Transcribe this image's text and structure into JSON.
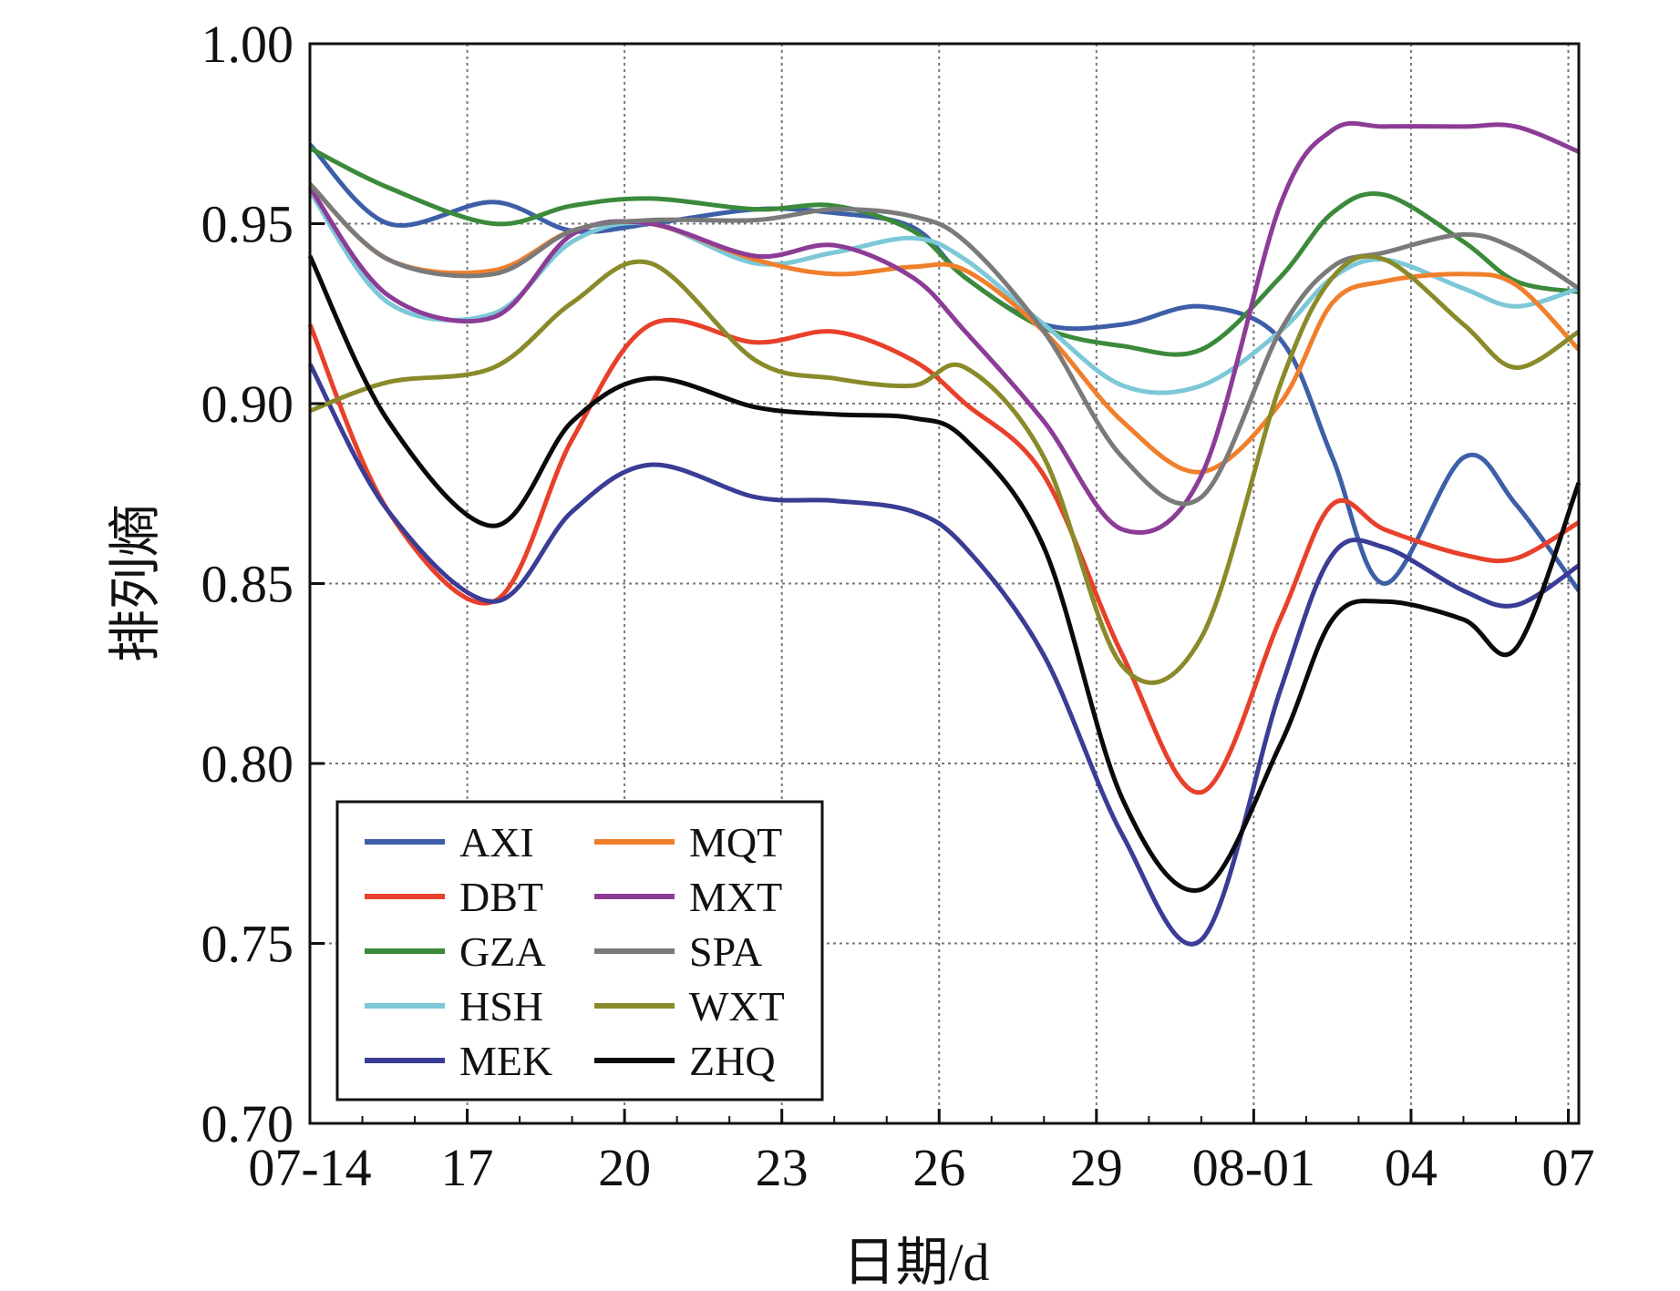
{
  "chart_data": {
    "type": "line",
    "title": "",
    "xlabel": "日期/d",
    "ylabel": "排列熵",
    "ylim": [
      0.7,
      1.0
    ],
    "xlim": [
      0,
      24.2
    ],
    "grid": true,
    "legend_position": "bottom-left",
    "x_ticks": [
      {
        "value": 0,
        "label": "07-14"
      },
      {
        "value": 3,
        "label": "17"
      },
      {
        "value": 6,
        "label": "20"
      },
      {
        "value": 9,
        "label": "23"
      },
      {
        "value": 12,
        "label": "26"
      },
      {
        "value": 15,
        "label": "29"
      },
      {
        "value": 18,
        "label": "08-01"
      },
      {
        "value": 21,
        "label": "04"
      },
      {
        "value": 24,
        "label": "07"
      }
    ],
    "y_ticks": [
      "0.70",
      "0.75",
      "0.80",
      "0.85",
      "0.90",
      "0.95",
      "1.00"
    ],
    "x": [
      0,
      1.5,
      3.5,
      5,
      6.5,
      8.5,
      10,
      11.5,
      12.5,
      14,
      15.5,
      17,
      18.5,
      19.5,
      20.5,
      22,
      23,
      24.2
    ],
    "series": [
      {
        "name": "AXI",
        "color": "#3d5fa8",
        "values": [
          0.972,
          0.95,
          0.956,
          0.948,
          0.95,
          0.954,
          0.953,
          0.949,
          0.935,
          0.922,
          0.922,
          0.927,
          0.918,
          0.885,
          0.85,
          0.885,
          0.872,
          0.848
        ]
      },
      {
        "name": "DBT",
        "color": "#e8402a",
        "values": [
          0.922,
          0.87,
          0.845,
          0.89,
          0.922,
          0.917,
          0.92,
          0.912,
          0.9,
          0.88,
          0.83,
          0.792,
          0.84,
          0.872,
          0.865,
          0.858,
          0.857,
          0.867
        ]
      },
      {
        "name": "GZA",
        "color": "#3b8a3b",
        "values": [
          0.971,
          0.96,
          0.95,
          0.955,
          0.957,
          0.954,
          0.955,
          0.948,
          0.935,
          0.921,
          0.916,
          0.915,
          0.935,
          0.953,
          0.958,
          0.945,
          0.934,
          0.931
        ]
      },
      {
        "name": "HSH",
        "color": "#7cc8d8",
        "values": [
          0.959,
          0.928,
          0.925,
          0.945,
          0.95,
          0.939,
          0.942,
          0.946,
          0.94,
          0.922,
          0.905,
          0.905,
          0.92,
          0.935,
          0.94,
          0.932,
          0.927,
          0.932
        ]
      },
      {
        "name": "MEK",
        "color": "#3a3d95",
        "values": [
          0.911,
          0.87,
          0.845,
          0.87,
          0.883,
          0.874,
          0.873,
          0.87,
          0.86,
          0.83,
          0.78,
          0.751,
          0.82,
          0.858,
          0.86,
          0.848,
          0.844,
          0.855
        ]
      },
      {
        "name": "MQT",
        "color": "#f07f2c",
        "values": [
          0.961,
          0.94,
          0.937,
          0.948,
          0.95,
          0.94,
          0.936,
          0.938,
          0.937,
          0.92,
          0.895,
          0.881,
          0.9,
          0.928,
          0.934,
          0.936,
          0.933,
          0.915
        ]
      },
      {
        "name": "MXT",
        "color": "#8c3c96",
        "values": [
          0.96,
          0.93,
          0.924,
          0.947,
          0.95,
          0.941,
          0.944,
          0.935,
          0.92,
          0.895,
          0.865,
          0.88,
          0.955,
          0.976,
          0.977,
          0.977,
          0.977,
          0.97
        ]
      },
      {
        "name": "SPA",
        "color": "#7a7a7a",
        "values": [
          0.961,
          0.94,
          0.936,
          0.948,
          0.951,
          0.951,
          0.954,
          0.952,
          0.945,
          0.92,
          0.885,
          0.874,
          0.92,
          0.938,
          0.942,
          0.947,
          0.943,
          0.932
        ]
      },
      {
        "name": "WXT",
        "color": "#8a8a2a",
        "values": [
          0.898,
          0.906,
          0.91,
          0.928,
          0.939,
          0.912,
          0.907,
          0.905,
          0.91,
          0.885,
          0.827,
          0.835,
          0.905,
          0.935,
          0.94,
          0.922,
          0.91,
          0.92
        ]
      },
      {
        "name": "ZHQ",
        "color": "#0a0a0a",
        "values": [
          0.941,
          0.895,
          0.866,
          0.895,
          0.907,
          0.899,
          0.897,
          0.896,
          0.89,
          0.86,
          0.79,
          0.765,
          0.805,
          0.84,
          0.845,
          0.84,
          0.832,
          0.878
        ]
      }
    ]
  }
}
